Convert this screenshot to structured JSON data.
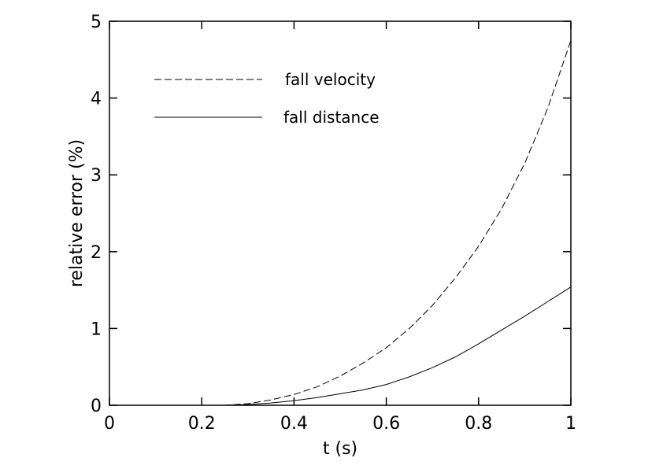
{
  "chart_data": {
    "type": "line",
    "title": "",
    "xlabel": "t (s)",
    "ylabel": "relative error (%)",
    "xlim": [
      0,
      1
    ],
    "ylim": [
      0,
      5
    ],
    "xticks": [
      0,
      0.2,
      0.4,
      0.6,
      0.8,
      1
    ],
    "yticks": [
      0,
      1,
      2,
      3,
      4,
      5
    ],
    "xtick_labels": [
      "0",
      "0.2",
      "0.4",
      "0.6",
      "0.8",
      "1"
    ],
    "ytick_labels": [
      "0",
      "1",
      "2",
      "3",
      "4",
      "5"
    ],
    "grid": false,
    "legend_position": "top-left",
    "series": [
      {
        "name": "fall velocity",
        "style": "dashed",
        "color": "#000000",
        "x": [
          0.18,
          0.2,
          0.25,
          0.3,
          0.35,
          0.4,
          0.45,
          0.5,
          0.55,
          0.6,
          0.65,
          0.7,
          0.75,
          0.8,
          0.85,
          0.9,
          0.95,
          1.0
        ],
        "y": [
          0.0,
          0.0,
          0.0,
          0.02,
          0.07,
          0.14,
          0.24,
          0.38,
          0.55,
          0.75,
          1.0,
          1.3,
          1.66,
          2.07,
          2.56,
          3.15,
          3.87,
          4.75
        ]
      },
      {
        "name": "fall distance",
        "style": "solid",
        "color": "#000000",
        "x": [
          0.18,
          0.2,
          0.25,
          0.3,
          0.35,
          0.4,
          0.45,
          0.5,
          0.55,
          0.6,
          0.65,
          0.7,
          0.75,
          0.8,
          0.85,
          0.9,
          0.95,
          1.0
        ],
        "y": [
          0.0,
          0.0,
          0.0,
          0.01,
          0.03,
          0.06,
          0.1,
          0.15,
          0.2,
          0.27,
          0.37,
          0.49,
          0.63,
          0.8,
          0.98,
          1.16,
          1.35,
          1.54
        ]
      }
    ]
  }
}
